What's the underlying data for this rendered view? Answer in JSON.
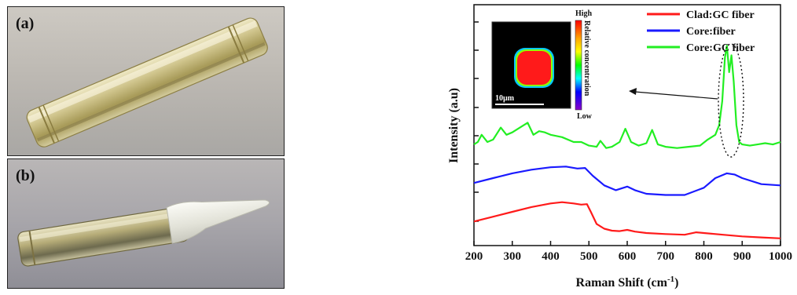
{
  "figure": {
    "panel_a_label": "(a)",
    "panel_b_label": "(b)"
  },
  "colors": {
    "clad_gc": "#ff1a1a",
    "core_fiber": "#1a1aff",
    "core_gc": "#22ee22"
  },
  "inset": {
    "scale_bar_label": "10µm",
    "colorbar_high": "High",
    "colorbar_low": "Low",
    "colorbar_title": "Relative concentration"
  },
  "chart_data": {
    "type": "line",
    "title": "",
    "xlabel_main": "Raman Shift (cm",
    "xlabel_sup": "-1",
    "xlabel_end": ")",
    "ylabel": "Intensity (a.u)",
    "xlim": [
      200,
      1000
    ],
    "ylim": [
      0,
      10
    ],
    "x_ticks": [
      200,
      300,
      400,
      500,
      600,
      700,
      800,
      900,
      1000
    ],
    "legend_position": "top-right",
    "series": [
      {
        "name": "Clad:GC fiber",
        "color": "#ff1a1a",
        "x": [
          200,
          250,
          300,
          350,
          400,
          430,
          460,
          480,
          495,
          505,
          520,
          540,
          560,
          580,
          600,
          620,
          650,
          700,
          750,
          780,
          800,
          850,
          900,
          950,
          1000
        ],
        "y": [
          1.0,
          1.2,
          1.4,
          1.6,
          1.75,
          1.8,
          1.75,
          1.7,
          1.72,
          1.4,
          0.9,
          0.7,
          0.62,
          0.6,
          0.65,
          0.58,
          0.52,
          0.48,
          0.45,
          0.55,
          0.52,
          0.45,
          0.38,
          0.34,
          0.3
        ]
      },
      {
        "name": "Core:fiber",
        "color": "#1a1aff",
        "x": [
          200,
          250,
          300,
          350,
          400,
          440,
          470,
          490,
          510,
          540,
          570,
          600,
          620,
          650,
          700,
          750,
          800,
          830,
          860,
          880,
          900,
          950,
          1000
        ],
        "y": [
          2.6,
          2.8,
          3.0,
          3.15,
          3.25,
          3.28,
          3.2,
          3.22,
          2.9,
          2.5,
          2.3,
          2.45,
          2.3,
          2.15,
          2.1,
          2.1,
          2.4,
          2.8,
          3.0,
          2.95,
          2.8,
          2.55,
          2.5
        ]
      },
      {
        "name": "Core:GC fiber",
        "color": "#22ee22",
        "x": [
          200,
          210,
          220,
          235,
          250,
          260,
          270,
          285,
          300,
          320,
          340,
          355,
          370,
          385,
          400,
          430,
          460,
          480,
          500,
          520,
          530,
          545,
          560,
          580,
          595,
          610,
          630,
          650,
          665,
          680,
          700,
          730,
          760,
          790,
          810,
          830,
          840,
          848,
          855,
          860,
          866,
          872,
          878,
          885,
          892,
          900,
          920,
          940,
          960,
          980,
          1000
        ],
        "y": [
          4.2,
          4.3,
          4.6,
          4.3,
          4.4,
          4.65,
          4.9,
          4.6,
          4.7,
          4.9,
          5.1,
          4.6,
          4.75,
          4.7,
          4.6,
          4.5,
          4.3,
          4.3,
          4.15,
          4.1,
          4.35,
          4.05,
          4.1,
          4.3,
          4.85,
          4.3,
          4.15,
          4.25,
          4.8,
          4.2,
          4.1,
          4.05,
          4.1,
          4.15,
          4.4,
          4.6,
          5.0,
          6.0,
          7.8,
          8.3,
          7.2,
          7.9,
          6.8,
          5.0,
          4.3,
          4.2,
          4.15,
          4.2,
          4.25,
          4.2,
          4.3
        ]
      }
    ]
  }
}
